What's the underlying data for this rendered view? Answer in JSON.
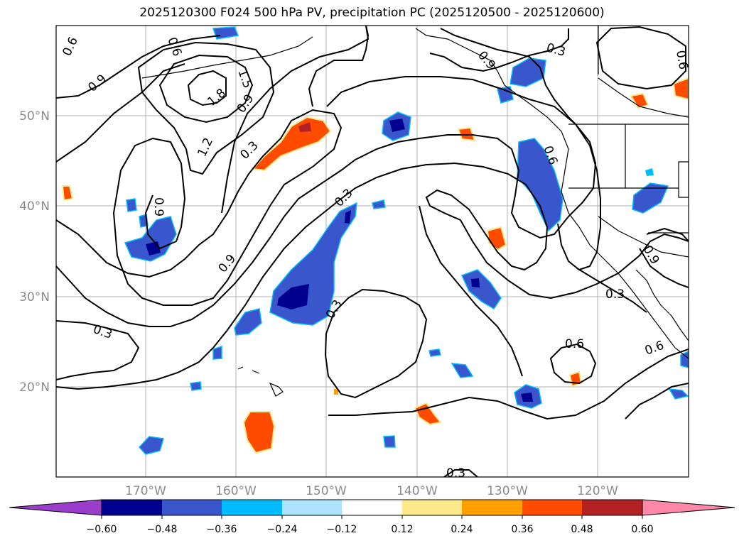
{
  "title": "2025120300 F024 500 hPa PV, precipitation PC (2025120500 - 2025120600)",
  "map": {
    "lat_labels": [
      "50°N",
      "40°N",
      "30°N",
      "20°N"
    ],
    "lon_labels": [
      "170°W",
      "160°W",
      "150°W",
      "140°W",
      "130°W",
      "120°W"
    ],
    "contour_labels": [
      "0.6",
      "0.6",
      "0.9",
      "1.5",
      "1.8",
      "0.9",
      "1.2",
      "0.3",
      "0.9",
      "0.9",
      "0.3",
      "0.3",
      "0.3",
      "0.6",
      "0.3",
      "0.9",
      "0.6",
      "0.9",
      "0.3",
      "0.6",
      "0.6",
      "0.3"
    ]
  },
  "colorbar": {
    "ticks": [
      "−0.60",
      "−0.48",
      "−0.36",
      "−0.24",
      "−0.12",
      "0.12",
      "0.24",
      "0.36",
      "0.48",
      "0.60"
    ],
    "colors": [
      "#9a3ccc",
      "#000090",
      "#3a56cc",
      "#00bbff",
      "#abe3fb",
      "#ffffff",
      "#fce98a",
      "#ffa000",
      "#ff4b00",
      "#b22222",
      "#ff88aa"
    ]
  }
}
